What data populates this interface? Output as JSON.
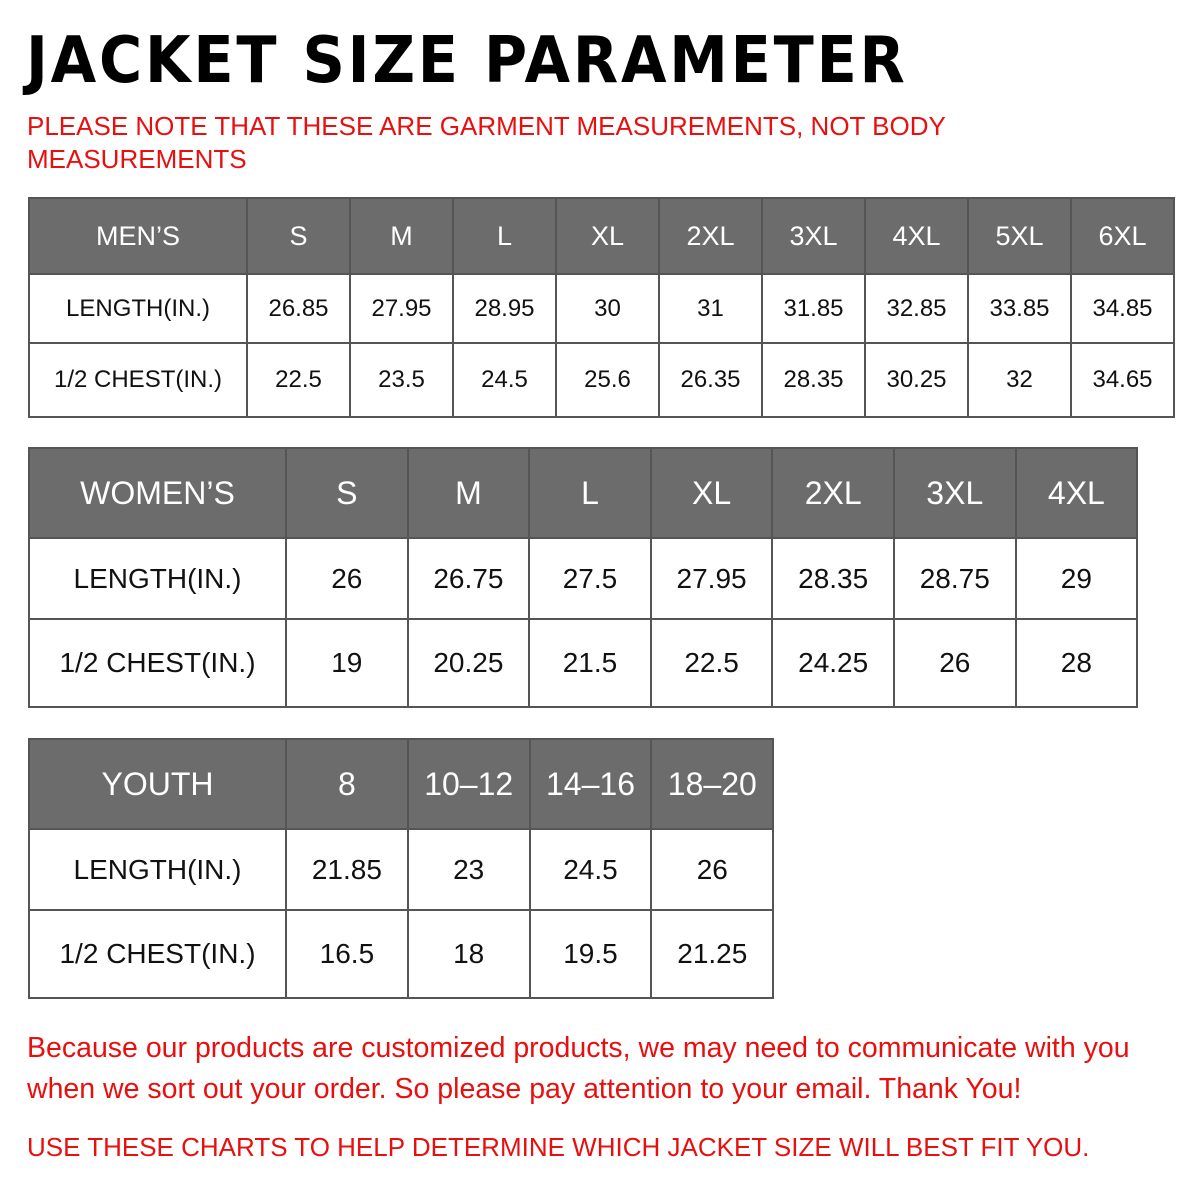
{
  "title": "JACKET SIZE PARAMETER",
  "note": "PLEASE NOTE THAT THESE ARE GARMENT MEASUREMENTS, NOT BODY MEASUREMENTS",
  "header_color": "#6c6c6c",
  "accent_color": "#e8100f",
  "men": {
    "header": [
      "MEN’S",
      "S",
      "M",
      "L",
      "XL",
      "2XL",
      "3XL",
      "4XL",
      "5XL",
      "6XL"
    ],
    "rows": [
      [
        "LENGTH(IN.)",
        "26.85",
        "27.95",
        "28.95",
        "30",
        "31",
        "31.85",
        "32.85",
        "33.85",
        "34.85"
      ],
      [
        "1/2 CHEST(IN.)",
        "22.5",
        "23.5",
        "24.5",
        "25.6",
        "26.35",
        "28.35",
        "30.25",
        "32",
        "34.65"
      ]
    ]
  },
  "women": {
    "header": [
      "WOMEN’S",
      "S",
      "M",
      "L",
      "XL",
      "2XL",
      "3XL",
      "4XL"
    ],
    "rows": [
      [
        "LENGTH(IN.)",
        "26",
        "26.75",
        "27.5",
        "27.95",
        "28.35",
        "28.75",
        "29"
      ],
      [
        "1/2 CHEST(IN.)",
        "19",
        "20.25",
        "21.5",
        "22.5",
        "24.25",
        "26",
        "28"
      ]
    ]
  },
  "youth": {
    "header": [
      "YOUTH",
      "8",
      "10–12",
      "14–16",
      "18–20"
    ],
    "rows": [
      [
        "LENGTH(IN.)",
        "21.85",
        "23",
        "24.5",
        "26"
      ],
      [
        "1/2 CHEST(IN.)",
        "16.5",
        "18",
        "19.5",
        "21.25"
      ]
    ]
  },
  "footer": {
    "message": "Because our products are customized products, we may need to communicate with you when we sort out your order. So please pay attention to your email. Thank You!",
    "advice": "USE THESE CHARTS TO HELP DETERMINE WHICH JACKET SIZE WILL BEST FIT YOU."
  }
}
